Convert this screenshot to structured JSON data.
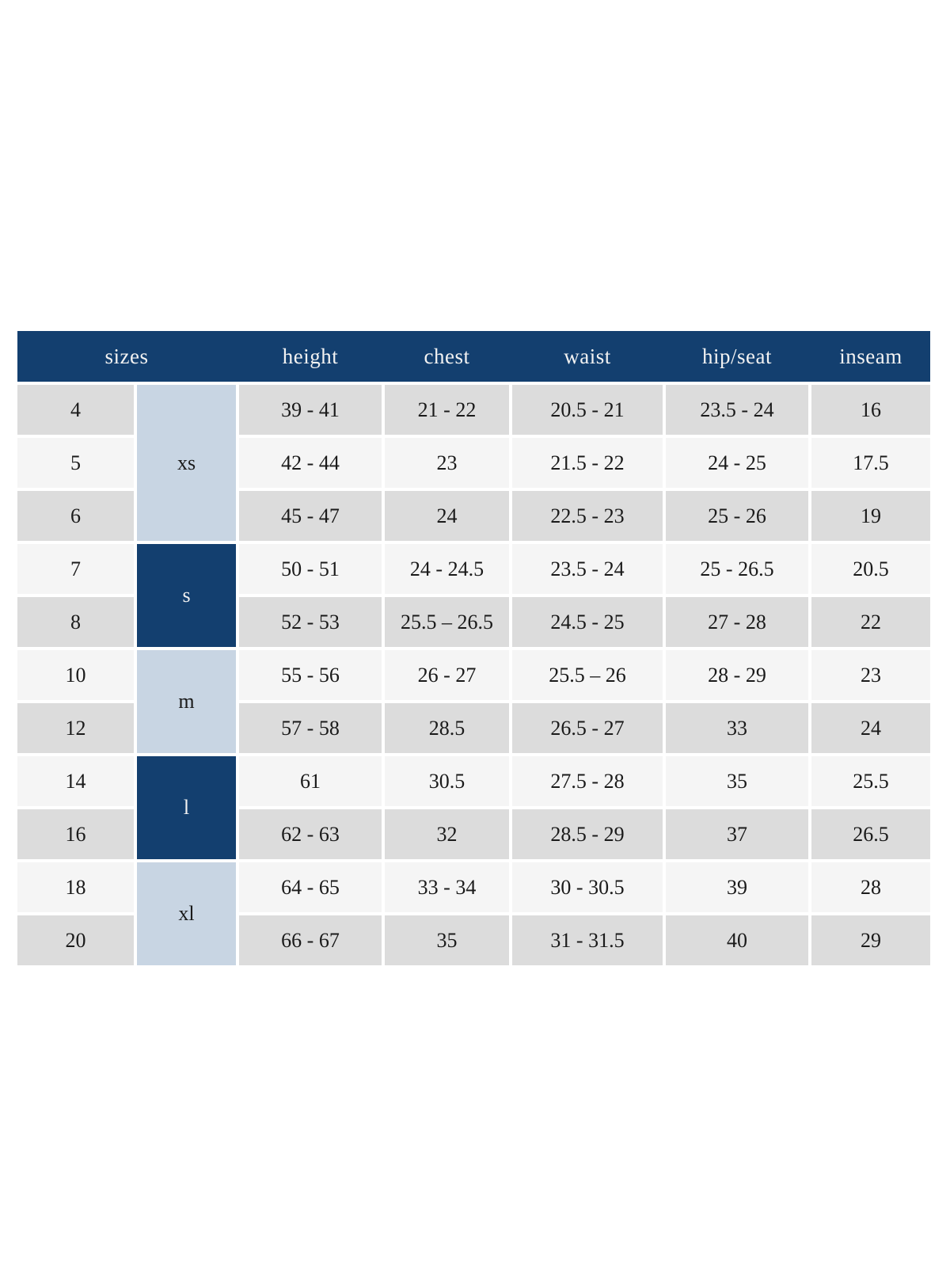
{
  "chart_data": {
    "type": "table",
    "columns": [
      "sizes",
      "height",
      "chest",
      "waist",
      "hip/seat",
      "inseam"
    ],
    "size_groups": [
      {
        "label": "xs",
        "tone": "light",
        "row_span": 3
      },
      {
        "label": "s",
        "tone": "dark",
        "row_span": 2
      },
      {
        "label": "m",
        "tone": "light",
        "row_span": 2
      },
      {
        "label": "l",
        "tone": "dark",
        "row_span": 2
      },
      {
        "label": "xl",
        "tone": "light",
        "row_span": 2
      }
    ],
    "rows": [
      {
        "size": "4",
        "height": "39 - 41",
        "chest": "21 - 22",
        "waist": "20.5 - 21",
        "hip_seat": "23.5 - 24",
        "inseam": "16"
      },
      {
        "size": "5",
        "height": "42 - 44",
        "chest": "23",
        "waist": "21.5 - 22",
        "hip_seat": "24 - 25",
        "inseam": "17.5"
      },
      {
        "size": "6",
        "height": "45 - 47",
        "chest": "24",
        "waist": "22.5 - 23",
        "hip_seat": "25 - 26",
        "inseam": "19"
      },
      {
        "size": "7",
        "height": "50 - 51",
        "chest": "24 - 24.5",
        "waist": "23.5 - 24",
        "hip_seat": "25 - 26.5",
        "inseam": "20.5"
      },
      {
        "size": "8",
        "height": "52 - 53",
        "chest": "25.5 – 26.5",
        "waist": "24.5 - 25",
        "hip_seat": "27 - 28",
        "inseam": "22"
      },
      {
        "size": "10",
        "height": "55 - 56",
        "chest": "26 - 27",
        "waist": "25.5 – 26",
        "hip_seat": "28 - 29",
        "inseam": "23"
      },
      {
        "size": "12",
        "height": "57 - 58",
        "chest": "28.5",
        "waist": "26.5 - 27",
        "hip_seat": "33",
        "inseam": "24"
      },
      {
        "size": "14",
        "height": "61",
        "chest": "30.5",
        "waist": "27.5 - 28",
        "hip_seat": "35",
        "inseam": "25.5"
      },
      {
        "size": "16",
        "height": "62 - 63",
        "chest": "32",
        "waist": "28.5 - 29",
        "hip_seat": "37",
        "inseam": "26.5"
      },
      {
        "size": "18",
        "height": "64 - 65",
        "chest": "33 - 34",
        "waist": "30 - 30.5",
        "hip_seat": "39",
        "inseam": "28"
      },
      {
        "size": "20",
        "height": "66 - 67",
        "chest": "35",
        "waist": "31 - 31.5",
        "hip_seat": "40",
        "inseam": "29"
      }
    ],
    "colors": {
      "page_bg": "#ffffff",
      "header_bg": "#133f6f",
      "header_text": "#f2f2f2",
      "group_light_bg": "#c8d5e3",
      "group_dark_bg": "#133f6f",
      "group_dark_text": "#f2f2f2",
      "row_gray_bg": "#dcdcdc",
      "row_light_bg": "#f5f5f5",
      "cell_text": "#1a1a1a"
    }
  }
}
